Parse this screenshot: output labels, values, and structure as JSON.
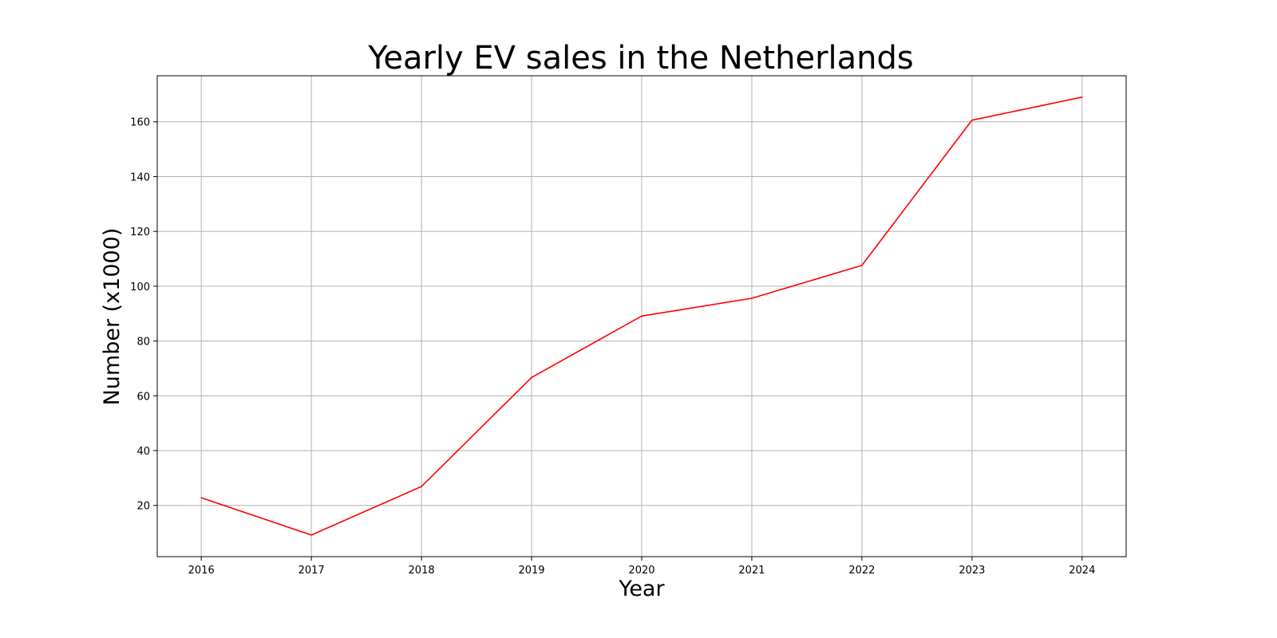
{
  "chart_data": {
    "type": "line",
    "title": "Yearly EV sales in the Netherlands",
    "xlabel": "Year",
    "ylabel": "Number (x1000)",
    "x": [
      2016,
      2017,
      2018,
      2019,
      2020,
      2021,
      2022,
      2023,
      2024
    ],
    "series": [
      {
        "values": [
          22.8,
          9.2,
          26.9,
          66.7,
          89.1,
          95.6,
          107.6,
          160.6,
          169.0
        ],
        "color": "#ff0000"
      }
    ],
    "xlim": [
      2015.6,
      2024.4
    ],
    "ylim": [
      1.3,
      176.8
    ],
    "xticks": [
      2016,
      2017,
      2018,
      2019,
      2020,
      2021,
      2022,
      2023,
      2024
    ],
    "yticks": [
      20,
      40,
      60,
      80,
      100,
      120,
      140,
      160
    ],
    "grid": true,
    "legend": "none"
  }
}
